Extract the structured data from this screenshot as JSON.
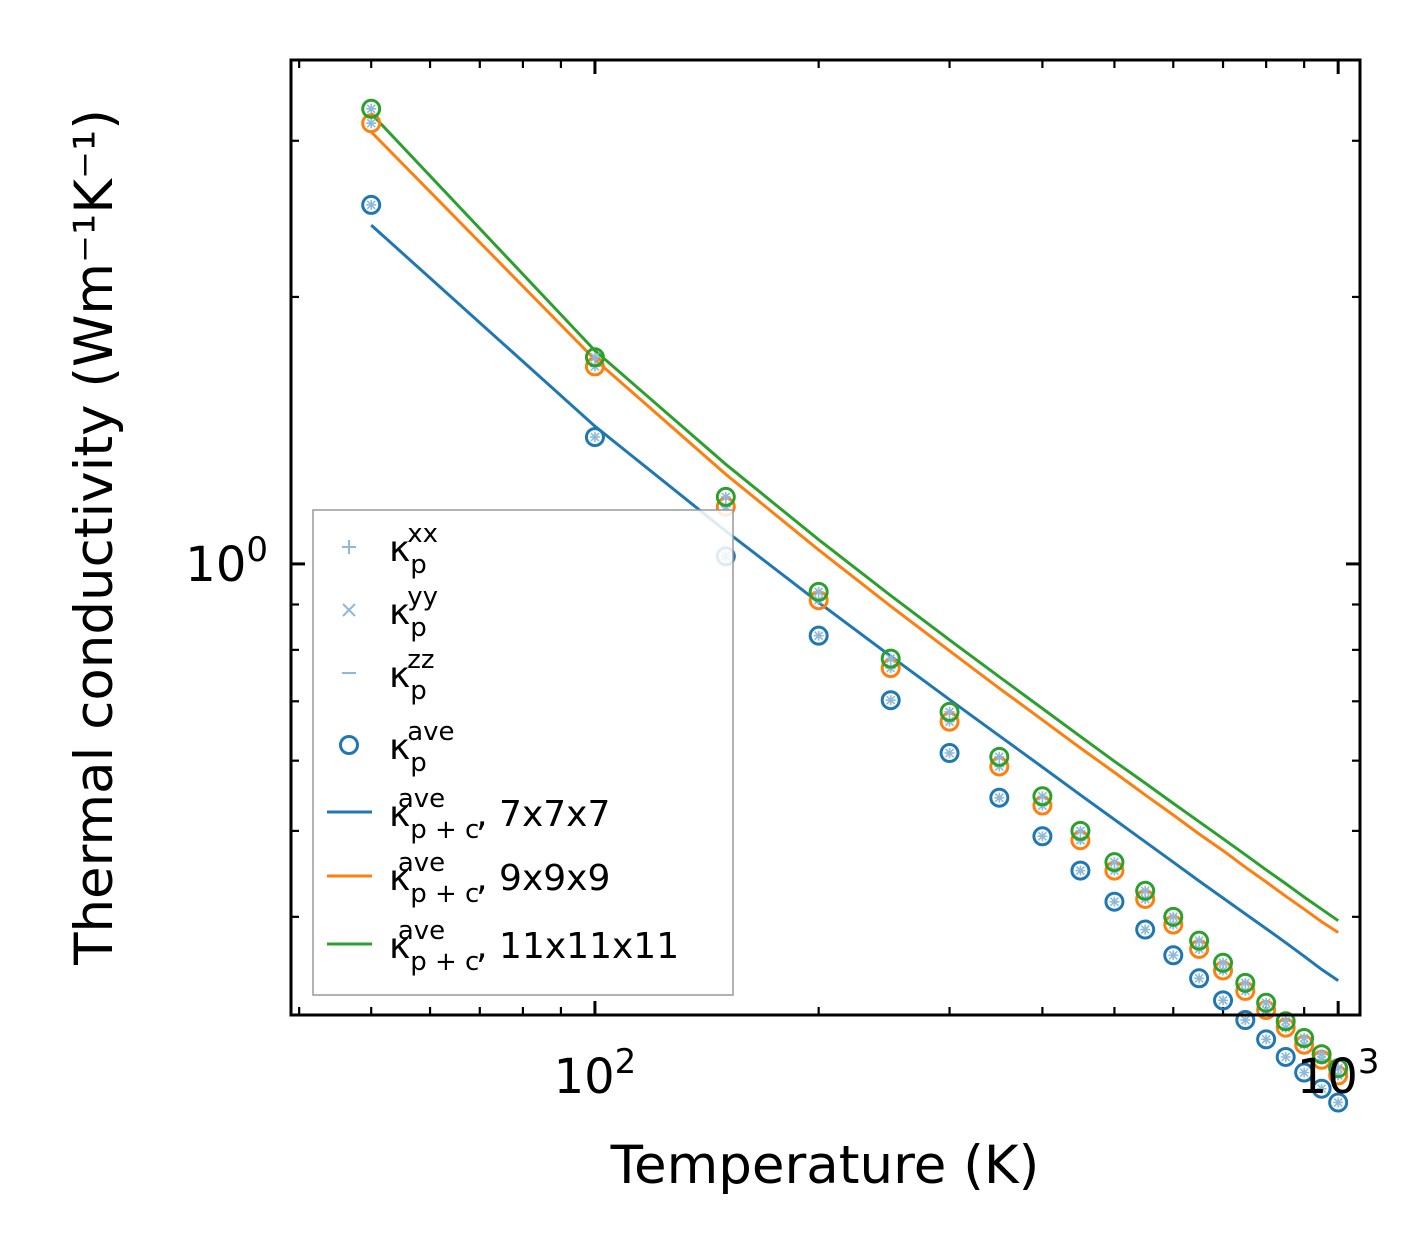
{
  "chart_data": {
    "type": "scatter",
    "title": "",
    "xlabel": "Temperature (K)",
    "ylabel": "Thermal conductivity (Wm⁻¹K⁻¹)",
    "xscale": "log",
    "yscale": "log",
    "xlim": [
      39,
      1070
    ],
    "ylim": [
      0.31,
      3.7
    ],
    "x_ticks": [
      {
        "base": "10",
        "exp": "2",
        "value": 100
      },
      {
        "base": "10",
        "exp": "3",
        "value": 1000
      }
    ],
    "y_ticks": [
      {
        "base": "10",
        "exp": "0",
        "value": 1
      }
    ],
    "legend_position": "lower-left",
    "colors": {
      "c7": "#1f77b4",
      "c9": "#ff7f0e",
      "c11": "#2ca02c",
      "light": "#8fb9d9"
    },
    "x": [
      50,
      100,
      150,
      200,
      250,
      300,
      350,
      400,
      450,
      500,
      550,
      600,
      650,
      700,
      750,
      800,
      850,
      900,
      950,
      1000
    ],
    "point_series": [
      {
        "name": "7x7x7",
        "color": "#1f77b4",
        "values": [
          2.54,
          1.39,
          1.02,
          0.83,
          0.702,
          0.612,
          0.545,
          0.493,
          0.451,
          0.416,
          0.387,
          0.362,
          0.341,
          0.322,
          0.306,
          0.291,
          0.278,
          0.267,
          0.256,
          0.247
        ]
      },
      {
        "name": "9x9x9",
        "color": "#ff7f0e",
        "values": [
          3.14,
          1.67,
          1.16,
          0.91,
          0.763,
          0.664,
          0.591,
          0.534,
          0.488,
          0.451,
          0.419,
          0.392,
          0.368,
          0.348,
          0.33,
          0.314,
          0.3,
          0.287,
          0.276,
          0.265
        ]
      },
      {
        "name": "11x11x11",
        "color": "#2ca02c",
        "values": [
          3.26,
          1.71,
          1.19,
          0.93,
          0.782,
          0.681,
          0.606,
          0.547,
          0.5,
          0.461,
          0.428,
          0.4,
          0.376,
          0.355,
          0.337,
          0.32,
          0.305,
          0.292,
          0.28,
          0.27
        ]
      }
    ],
    "line_series": [
      {
        "name": "7x7x7",
        "color": "#1f77b4",
        "values": [
          2.41,
          1.43,
          1.089,
          0.905,
          0.787,
          0.703,
          0.64,
          0.59,
          0.549,
          0.515,
          0.486,
          0.461,
          0.439,
          0.42,
          0.403,
          0.388,
          0.374,
          0.361,
          0.349,
          0.339
        ]
      },
      {
        "name": "9x9x9",
        "color": "#ff7f0e",
        "values": [
          3.07,
          1.7,
          1.262,
          1.037,
          0.896,
          0.798,
          0.724,
          0.667,
          0.62,
          0.582,
          0.549,
          0.521,
          0.496,
          0.475,
          0.455,
          0.438,
          0.422,
          0.408,
          0.395,
          0.384
        ]
      },
      {
        "name": "11x11x11",
        "color": "#2ca02c",
        "values": [
          3.22,
          1.74,
          1.295,
          1.065,
          0.921,
          0.821,
          0.746,
          0.687,
          0.639,
          0.599,
          0.566,
          0.537,
          0.512,
          0.49,
          0.47,
          0.452,
          0.436,
          0.421,
          0.408,
          0.396
        ]
      }
    ],
    "legend": [
      {
        "symbol": "plus",
        "color": "#8fb9d9",
        "base": "κ",
        "sub": "p",
        "sup": "xx",
        "suffix": ""
      },
      {
        "symbol": "cross",
        "color": "#8fb9d9",
        "base": "κ",
        "sub": "p",
        "sup": "yy",
        "suffix": ""
      },
      {
        "symbol": "dash",
        "color": "#8fb9d9",
        "base": "κ",
        "sub": "p",
        "sup": "zz",
        "suffix": ""
      },
      {
        "symbol": "circle",
        "color": "#1f77b4",
        "base": "κ",
        "sub": "p",
        "sup": "ave",
        "suffix": ""
      },
      {
        "symbol": "line",
        "color": "#1f77b4",
        "base": "κ",
        "sub": "p + c",
        "sup": "ave",
        "suffix": ", 7x7x7"
      },
      {
        "symbol": "line",
        "color": "#ff7f0e",
        "base": "κ",
        "sub": "p + c",
        "sup": "ave",
        "suffix": ", 9x9x9"
      },
      {
        "symbol": "line",
        "color": "#2ca02c",
        "base": "κ",
        "sub": "p + c",
        "sup": "ave",
        "suffix": ", 11x11x11"
      }
    ]
  }
}
